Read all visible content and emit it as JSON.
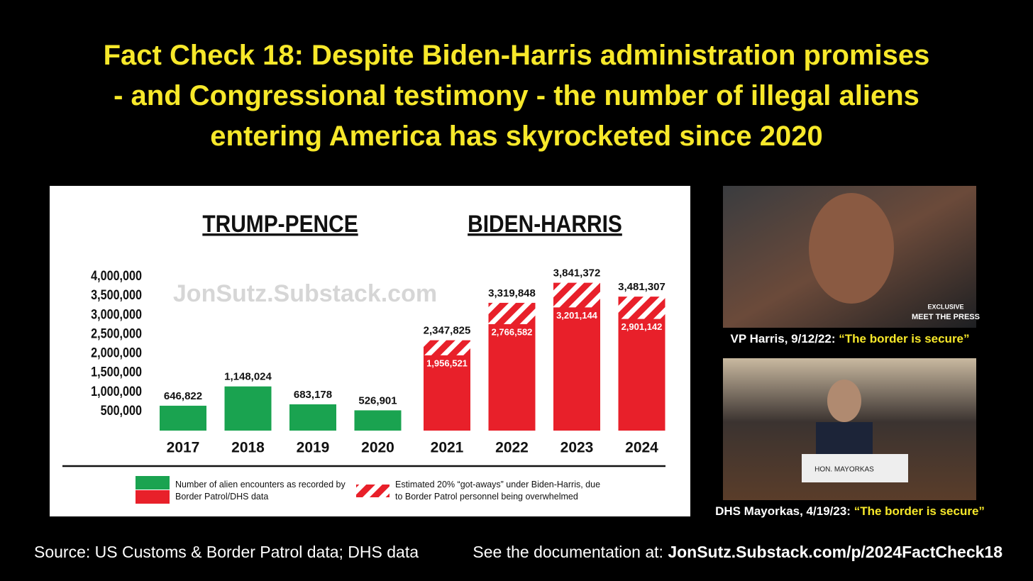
{
  "title_lines": [
    "Fact Check 18: Despite Biden-Harris administration promises",
    "- and Congressional testimony - the number of illegal aliens",
    "entering America has skyrocketed since 2020"
  ],
  "chart_data": {
    "type": "bar",
    "group_labels": [
      "TRUMP-PENCE",
      "BIDEN-HARRIS"
    ],
    "watermark": "JonSutz.Substack.com",
    "categories": [
      "2017",
      "2018",
      "2019",
      "2020",
      "2021",
      "2022",
      "2023",
      "2024"
    ],
    "series": [
      {
        "name": "Number of alien encounters as recorded by Border Patrol/DHS data",
        "colors": [
          "#1aa350",
          "#1aa350",
          "#1aa350",
          "#1aa350",
          "#e8202a",
          "#e8202a",
          "#e8202a",
          "#e8202a"
        ],
        "values": [
          646822,
          1148024,
          683178,
          526901,
          1956521,
          2766582,
          3201144,
          2901142
        ],
        "value_labels": [
          "646,822",
          "1,148,024",
          "683,178",
          "526,901",
          "1,956,521",
          "2,766,582",
          "3,201,144",
          "2,901,142"
        ]
      },
      {
        "name": "Estimated 20% “got-aways” under Biden-Harris, due to Border Patrol personnel being overwhelmed",
        "color": "#e8202a",
        "hatch": true,
        "values": [
          null,
          null,
          null,
          null,
          2347825,
          3319848,
          3841372,
          3481307
        ],
        "value_labels": [
          null,
          null,
          null,
          null,
          "2,347,825",
          "3,319,848",
          "3,841,372",
          "3,481,307"
        ]
      }
    ],
    "ylim": [
      0,
      4000000
    ],
    "yticks": [
      {
        "value": 500000,
        "label": "500,000"
      },
      {
        "value": 1000000,
        "label": "1,000,000"
      },
      {
        "value": 1500000,
        "label": "1,500,000"
      },
      {
        "value": 2000000,
        "label": "2,000,000"
      },
      {
        "value": 2500000,
        "label": "2,500,000"
      },
      {
        "value": 3000000,
        "label": "3,000,000"
      },
      {
        "value": 3500000,
        "label": "3,500,000"
      },
      {
        "value": 4000000,
        "label": "4,000,000"
      }
    ],
    "grid": false
  },
  "photos": [
    {
      "overlay": [
        "EXCLUSIVE",
        "MEET THE PRESS"
      ],
      "caption_speaker": "VP Harris, 9/12/22:",
      "caption_quote": "“The border is secure”"
    },
    {
      "overlay": [
        "HON. MAYORKAS"
      ],
      "caption_speaker": "DHS Mayorkas, 4/19/23:",
      "caption_quote": "“The border is secure”"
    }
  ],
  "footer": {
    "source": "Source: US Customs & Border Patrol data; DHS data",
    "doc_prefix": "See the documentation at:",
    "doc_link": "JonSutz.Substack.com/p/2024FactCheck18"
  }
}
